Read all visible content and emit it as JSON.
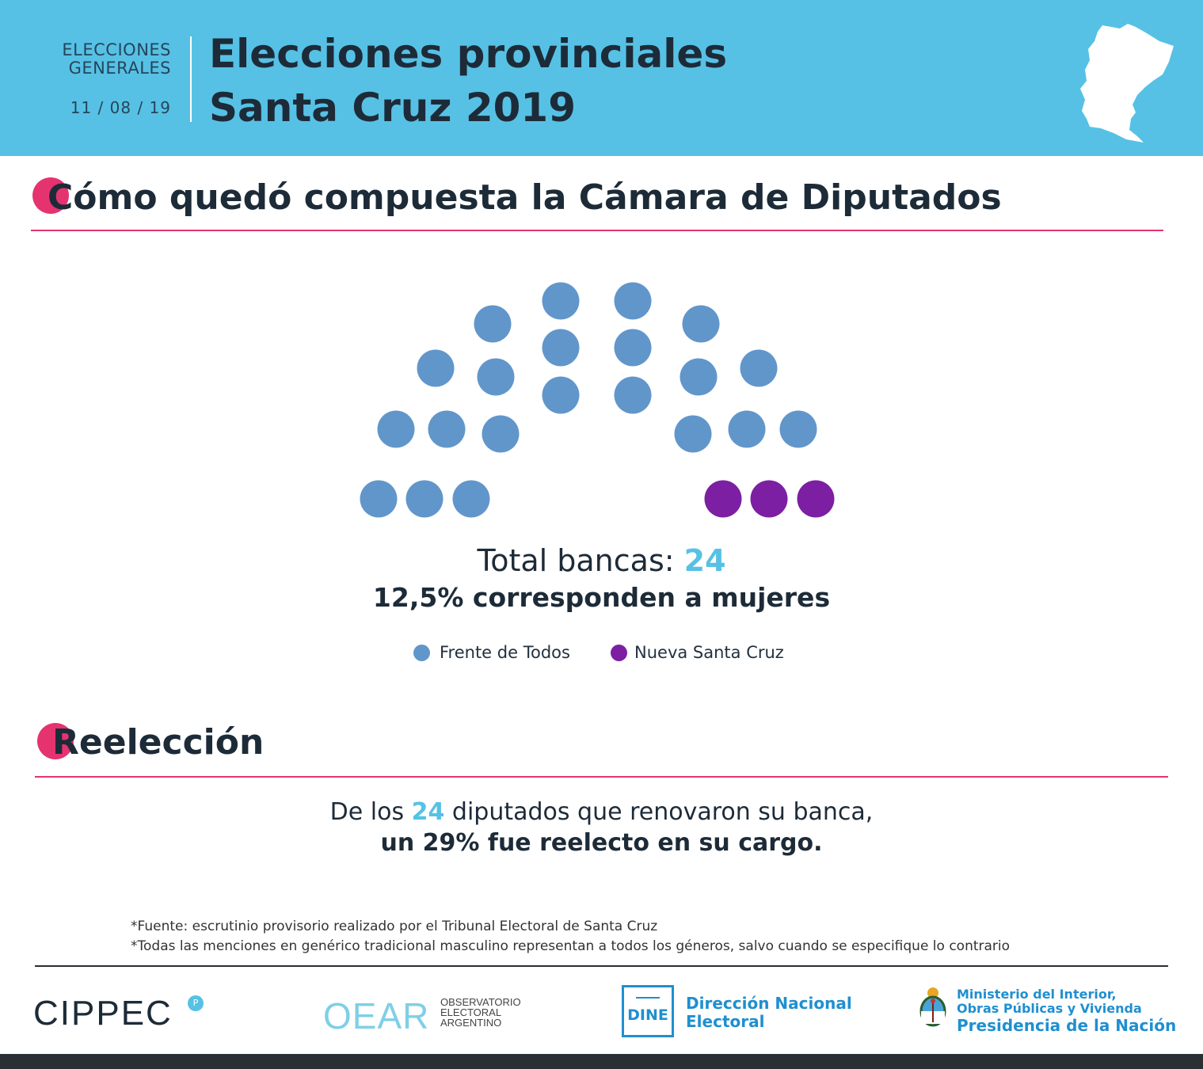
{
  "header": {
    "label_line1": "ELECCIONES",
    "label_line2": "GENERALES",
    "date": "11 / 08 / 19",
    "title_line1": "Elecciones provinciales",
    "title_line2": "Santa Cruz 2019",
    "background_color": "#56c1e5"
  },
  "section1": {
    "title": "Cómo quedó compuesta la Cámara de Diputados"
  },
  "chart_data": {
    "type": "parliament",
    "title": "Cómo quedó compuesta la Cámara de Diputados",
    "total_seats": 24,
    "series": [
      {
        "name": "Frente de Todos",
        "seats": 21,
        "color": "#6196cb"
      },
      {
        "name": "Nueva Santa Cruz",
        "seats": 3,
        "color": "#7c1fa2"
      }
    ],
    "total_label": "Total bancas: ",
    "total_value": "24",
    "women_label": "12,5% corresponden a mujeres",
    "women_percent": 12.5
  },
  "legend": [
    {
      "label": "Frente de Todos",
      "color": "#6196cb"
    },
    {
      "label": "Nueva Santa Cruz",
      "color": "#7c1fa2"
    }
  ],
  "section2": {
    "title": "Reelección",
    "line1_before": "De los ",
    "line1_num": "24",
    "line1_after": " diputados que renovaron su banca,",
    "line2": "un 29% fue reelecto en su cargo."
  },
  "notes": [
    "*Fuente: escrutinio provisorio realizado por el Tribunal Electoral de Santa Cruz",
    "*Todas las menciones en genérico tradicional masculino representan a todos los géneros, salvo cuando se especifique lo contrario"
  ],
  "logos": {
    "cippec": "CIPPEC",
    "cippec_badge": "P",
    "oear": "OEAR",
    "oear_line1": "OBSERVATORIO",
    "oear_line2": "ELECTORAL",
    "oear_line3": "ARGENTINO",
    "dine_acronym": "DINE",
    "dine_line1": "Dirección Nacional",
    "dine_line2": "Electoral",
    "ministerio_line1": "Ministerio del Interior,",
    "ministerio_line2": "Obras Públicas y Vivienda",
    "presidencia": "Presidencia de la Nación"
  },
  "accent_color": "#e5336f"
}
